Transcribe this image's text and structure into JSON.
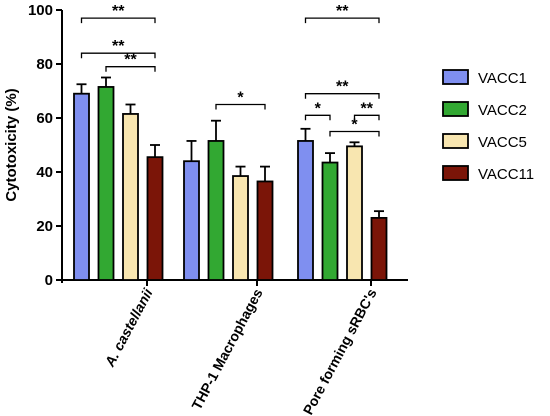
{
  "chart_data": {
    "type": "bar",
    "title": "",
    "xlabel": "",
    "ylabel": "Cytotoxicity (%)",
    "ylim": [
      0,
      100
    ],
    "yticks": [
      0,
      20,
      40,
      60,
      80,
      100
    ],
    "grid": false,
    "legend_position": "right",
    "categories": [
      "A. castellanii",
      "THP-1 Macrophages",
      "Pore forming sRBC's"
    ],
    "series": [
      {
        "name": "VACC1",
        "color": "#7f8ff0",
        "values": [
          69,
          44,
          51.5
        ],
        "errors": [
          3.5,
          7.5,
          4.5
        ]
      },
      {
        "name": "VACC2",
        "color": "#32a832",
        "values": [
          71.5,
          51.5,
          43.5
        ],
        "errors": [
          3.5,
          7.5,
          3.5
        ]
      },
      {
        "name": "VACC5",
        "color": "#f8e6b0",
        "values": [
          61.5,
          38.5,
          49.5
        ],
        "errors": [
          3.5,
          3.5,
          1.5
        ]
      },
      {
        "name": "VACC11",
        "color": "#7b1508",
        "values": [
          45.5,
          36.5,
          23
        ],
        "errors": [
          4.5,
          5.5,
          2.5
        ]
      }
    ],
    "significance": [
      {
        "group": 0,
        "from": 0,
        "to": 3,
        "label": "**",
        "y": 97
      },
      {
        "group": 0,
        "from": 0,
        "to": 3,
        "label": "**",
        "y": 84
      },
      {
        "group": 0,
        "from": 1,
        "to": 3,
        "label": "**",
        "y": 79
      },
      {
        "group": 1,
        "from": 1,
        "to": 3,
        "label": "*",
        "y": 65
      },
      {
        "group": 2,
        "from": 0,
        "to": 3,
        "label": "**",
        "y": 97
      },
      {
        "group": 2,
        "from": 0,
        "to": 3,
        "label": "**",
        "y": 69
      },
      {
        "group": 2,
        "from": 0,
        "to": 1,
        "label": "*",
        "y": 61
      },
      {
        "group": 2,
        "from": 2,
        "to": 3,
        "label": "**",
        "y": 61
      },
      {
        "group": 2,
        "from": 1,
        "to": 3,
        "label": "*",
        "y": 55
      }
    ]
  }
}
